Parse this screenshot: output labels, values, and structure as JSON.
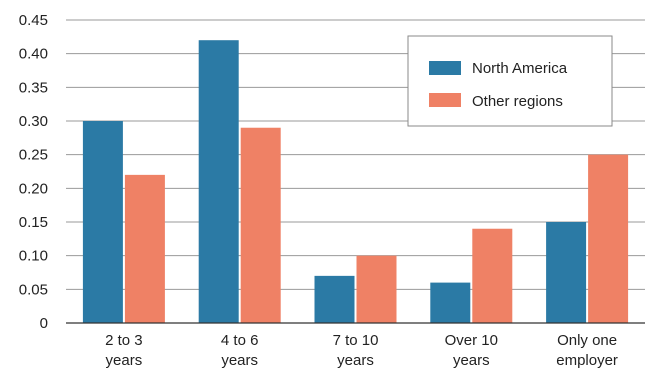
{
  "chart_data": {
    "type": "bar",
    "title": "",
    "xlabel": "",
    "ylabel": "",
    "ylim": [
      0,
      0.45
    ],
    "yticks": [
      "0",
      "0.05",
      "0.10",
      "0.15",
      "0.20",
      "0.25",
      "0.30",
      "0.35",
      "0.40",
      "0.45"
    ],
    "grid": true,
    "legend_position": "top-right",
    "categories": [
      [
        "2 to 3",
        "years"
      ],
      [
        "4 to 6",
        "years"
      ],
      [
        "7 to 10",
        "years"
      ],
      [
        "Over 10",
        "years"
      ],
      [
        "Only one",
        "employer"
      ]
    ],
    "series": [
      {
        "name": "North America",
        "color": "#2b7aa5",
        "values": [
          0.3,
          0.42,
          0.07,
          0.06,
          0.15
        ]
      },
      {
        "name": "Other regions",
        "color": "#ef8165",
        "values": [
          0.22,
          0.29,
          0.1,
          0.14,
          0.25
        ]
      }
    ]
  }
}
